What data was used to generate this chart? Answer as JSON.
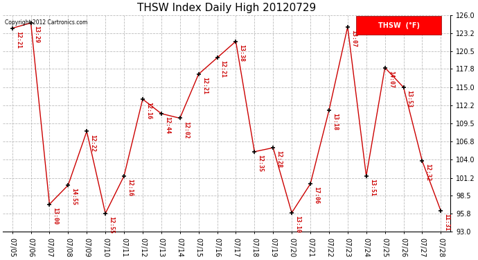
{
  "title": "THSW Index Daily High 20120729",
  "copyright": "Copyright 2012 Cartronics.com",
  "legend_label": "THSW  (°F)",
  "dates": [
    "07/05",
    "07/06",
    "07/07",
    "07/08",
    "07/09",
    "07/10",
    "07/11",
    "07/12",
    "07/13",
    "07/14",
    "07/15",
    "07/16",
    "07/17",
    "07/18",
    "07/19",
    "07/20",
    "07/21",
    "07/22",
    "07/23",
    "07/24",
    "07/25",
    "07/26",
    "07/27",
    "07/28"
  ],
  "values": [
    124.0,
    124.8,
    97.2,
    100.1,
    108.3,
    95.8,
    101.5,
    113.2,
    111.0,
    110.3,
    117.0,
    119.5,
    122.0,
    105.2,
    105.8,
    95.9,
    100.3,
    111.5,
    124.2,
    101.5,
    118.0,
    115.0,
    103.8,
    96.2
  ],
  "time_labels": [
    "12:21",
    "13:29",
    "13:00",
    "14:55",
    "12:22",
    "12:55",
    "12:16",
    "12:16",
    "12:44",
    "12:02",
    "12:21",
    "12:21",
    "13:38",
    "12:35",
    "12:28",
    "13:10",
    "17:06",
    "13:18",
    "13:07",
    "13:51",
    "14:07",
    "13:53",
    "12:32",
    "11:31"
  ],
  "ylim": [
    93.0,
    126.0
  ],
  "ytick_values": [
    93.0,
    95.8,
    98.5,
    101.2,
    104.0,
    106.8,
    109.5,
    112.2,
    115.0,
    117.8,
    120.5,
    123.2,
    126.0
  ],
  "line_color": "#cc0000",
  "marker_color": "#000000",
  "bg_color": "#ffffff",
  "grid_color": "#bbbbbb",
  "title_fontsize": 11,
  "annot_fontsize": 6.0,
  "tick_fontsize": 7.0
}
